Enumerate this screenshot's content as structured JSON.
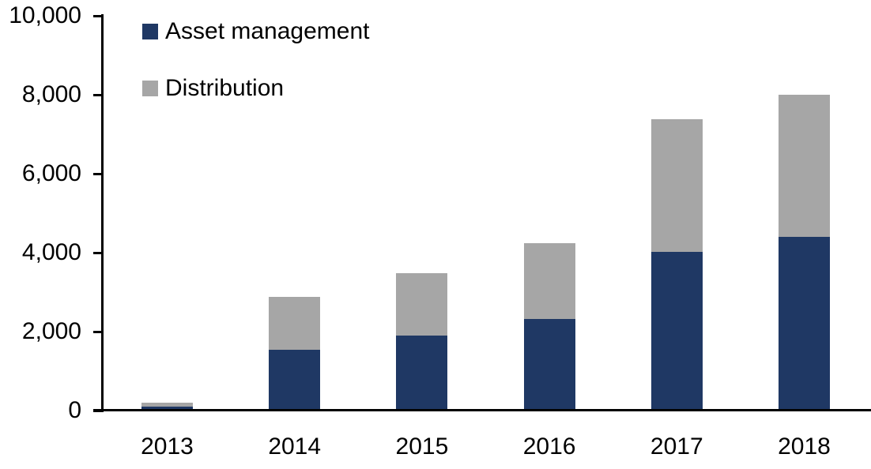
{
  "chart_data": {
    "type": "bar",
    "stacked": true,
    "title": "",
    "xlabel": "",
    "ylabel": "",
    "categories": [
      "2013",
      "2014",
      "2015",
      "2016",
      "2017",
      "2018"
    ],
    "series": [
      {
        "name": "Asset management",
        "color": "#1F3864",
        "values": [
          100,
          1550,
          1900,
          2320,
          4030,
          4400
        ]
      },
      {
        "name": "Distribution",
        "color": "#A6A6A6",
        "values": [
          110,
          1330,
          1590,
          1920,
          3350,
          3600
        ]
      }
    ],
    "totals": [
      210,
      2880,
      3490,
      4240,
      7380,
      8000
    ],
    "ylim": [
      0,
      10000
    ],
    "ytick_interval": 2000,
    "ytick_labels": [
      "0",
      "2,000",
      "4,000",
      "6,000",
      "8,000",
      "10,000"
    ],
    "grid": false,
    "legend_position": "top-left",
    "axis_color": "#000000",
    "text_color": "#000000",
    "background_color": "#ffffff"
  }
}
